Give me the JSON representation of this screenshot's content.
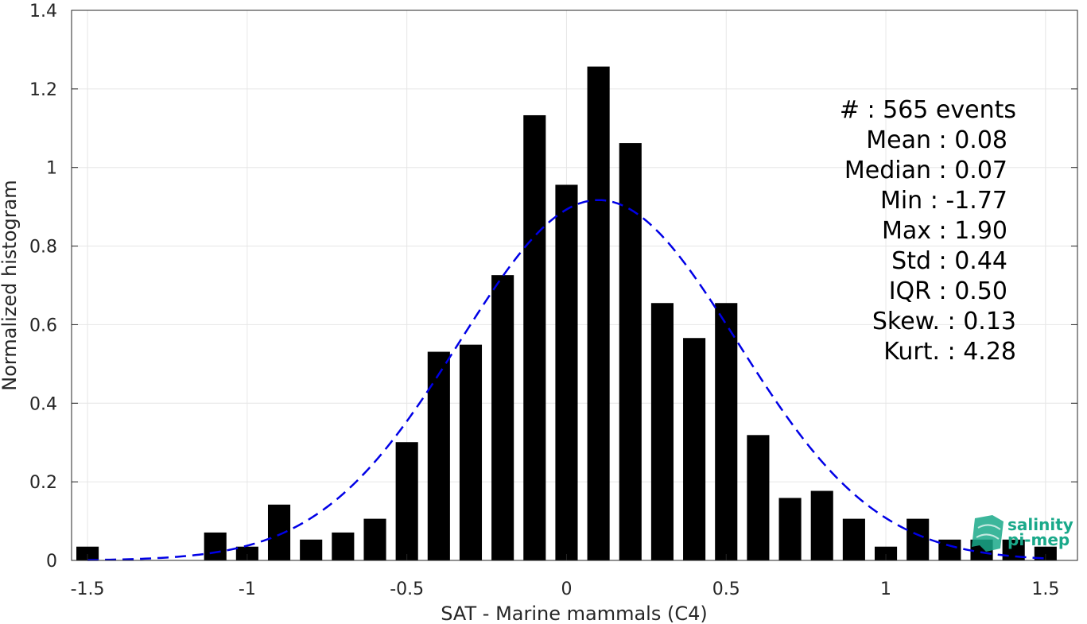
{
  "chart_data": {
    "type": "bar",
    "xlabel": "SAT - Marine mammals (C4)",
    "ylabel": "Normalized histogram",
    "xlim": [
      -1.55,
      1.6
    ],
    "ylim": [
      0,
      1.4
    ],
    "xticks": [
      -1.5,
      -1,
      -0.5,
      0,
      0.5,
      1,
      1.5
    ],
    "xtick_labels": [
      "-1.5",
      "-1",
      "-0.5",
      "0",
      "0.5",
      "1",
      "1.5"
    ],
    "yticks": [
      0,
      0.2,
      0.4,
      0.6,
      0.8,
      1,
      1.2,
      1.4
    ],
    "ytick_labels": [
      "0",
      "0.2",
      "0.4",
      "0.6",
      "0.8",
      "1",
      "1.2",
      "1.4"
    ],
    "grid": true,
    "bar_color": "#000000",
    "bin_width": 0.1,
    "bars": [
      {
        "x": -1.5,
        "value": 0.035
      },
      {
        "x": -1.1,
        "value": 0.071
      },
      {
        "x": -1.0,
        "value": 0.035
      },
      {
        "x": -0.9,
        "value": 0.142
      },
      {
        "x": -0.8,
        "value": 0.053
      },
      {
        "x": -0.7,
        "value": 0.071
      },
      {
        "x": -0.6,
        "value": 0.106
      },
      {
        "x": -0.5,
        "value": 0.301
      },
      {
        "x": -0.4,
        "value": 0.531
      },
      {
        "x": -0.3,
        "value": 0.549
      },
      {
        "x": -0.2,
        "value": 0.726
      },
      {
        "x": -0.1,
        "value": 1.133
      },
      {
        "x": 0.0,
        "value": 0.956
      },
      {
        "x": 0.1,
        "value": 1.257
      },
      {
        "x": 0.2,
        "value": 1.062
      },
      {
        "x": 0.3,
        "value": 0.655
      },
      {
        "x": 0.4,
        "value": 0.566
      },
      {
        "x": 0.5,
        "value": 0.655
      },
      {
        "x": 0.6,
        "value": 0.319
      },
      {
        "x": 0.7,
        "value": 0.159
      },
      {
        "x": 0.8,
        "value": 0.177
      },
      {
        "x": 0.9,
        "value": 0.106
      },
      {
        "x": 1.0,
        "value": 0.035
      },
      {
        "x": 1.1,
        "value": 0.106
      },
      {
        "x": 1.2,
        "value": 0.053
      },
      {
        "x": 1.3,
        "value": 0.053
      },
      {
        "x": 1.4,
        "value": 0.053
      },
      {
        "x": 1.5,
        "value": 0.035
      }
    ],
    "fit_curve": {
      "style": "dashed",
      "color": "#0000e6",
      "mean": 0.1,
      "std": 0.435,
      "x_range": [
        -1.5,
        1.5
      ]
    },
    "annotations": [
      "#  : 565 events",
      "Mean : 0.08",
      "Median : 0.07",
      "Min : -1.77",
      "Max : 1.90",
      "Std : 0.44",
      "IQR : 0.50",
      "Skew. : 0.13",
      "Kurt. : 4.28"
    ]
  },
  "logo": {
    "line1": "salinity",
    "line2": "pi-mep",
    "color": "#1aa98a"
  }
}
